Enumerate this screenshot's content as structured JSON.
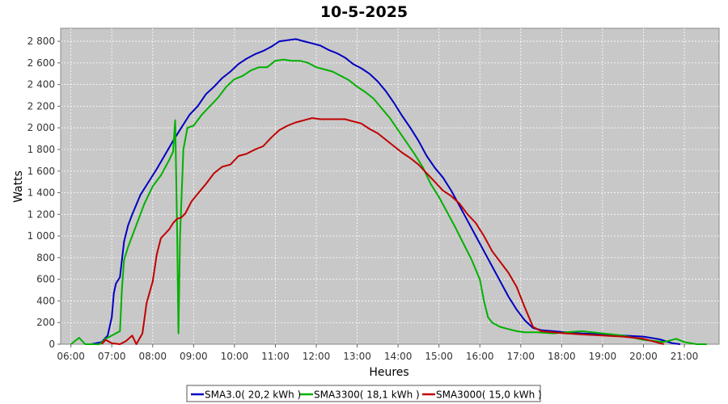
{
  "chart_data": {
    "type": "line",
    "title": "10-5-2025",
    "xlabel": "Heures",
    "ylabel": "Watts",
    "x_unit": "time of day (decimal hours)",
    "xlim": [
      5.75,
      21.85
    ],
    "ylim": [
      0,
      2920
    ],
    "x_ticks": [
      6,
      7,
      8,
      9,
      10,
      11,
      12,
      13,
      14,
      15,
      16,
      17,
      18,
      19,
      20,
      21
    ],
    "x_tick_labels": [
      "06:00",
      "07:00",
      "08:00",
      "09:00",
      "10:00",
      "11:00",
      "12:00",
      "13:00",
      "14:00",
      "15:00",
      "16:00",
      "17:00",
      "18:00",
      "19:00",
      "20:00",
      "21:00"
    ],
    "y_ticks": [
      0,
      200,
      400,
      600,
      800,
      1000,
      1200,
      1400,
      1600,
      1800,
      2000,
      2200,
      2400,
      2600,
      2800
    ],
    "y_tick_labels": [
      "0",
      "200",
      "400",
      "600",
      "800",
      "1 000",
      "1 200",
      "1 400",
      "1 600",
      "1 800",
      "2 000",
      "2 200",
      "2 400",
      "2 600",
      "2 800"
    ],
    "grid": true,
    "legend_position": "bottom",
    "background_color": "#c8c8c8",
    "series": [
      {
        "name": "SMA3.0( 20,2 kWh )",
        "color": "#0000c0",
        "points": [
          [
            6.5,
            0
          ],
          [
            6.75,
            20
          ],
          [
            6.9,
            80
          ],
          [
            7.0,
            250
          ],
          [
            7.05,
            470
          ],
          [
            7.1,
            560
          ],
          [
            7.2,
            620
          ],
          [
            7.3,
            950
          ],
          [
            7.4,
            1100
          ],
          [
            7.5,
            1200
          ],
          [
            7.7,
            1380
          ],
          [
            7.9,
            1500
          ],
          [
            8.1,
            1620
          ],
          [
            8.3,
            1750
          ],
          [
            8.5,
            1880
          ],
          [
            8.7,
            2000
          ],
          [
            8.9,
            2120
          ],
          [
            9.1,
            2200
          ],
          [
            9.3,
            2310
          ],
          [
            9.5,
            2380
          ],
          [
            9.7,
            2460
          ],
          [
            9.9,
            2520
          ],
          [
            10.1,
            2590
          ],
          [
            10.3,
            2640
          ],
          [
            10.5,
            2680
          ],
          [
            10.7,
            2710
          ],
          [
            10.9,
            2750
          ],
          [
            11.1,
            2800
          ],
          [
            11.3,
            2810
          ],
          [
            11.5,
            2820
          ],
          [
            11.7,
            2800
          ],
          [
            11.9,
            2780
          ],
          [
            12.1,
            2760
          ],
          [
            12.3,
            2720
          ],
          [
            12.5,
            2690
          ],
          [
            12.7,
            2650
          ],
          [
            12.9,
            2590
          ],
          [
            13.1,
            2550
          ],
          [
            13.3,
            2500
          ],
          [
            13.5,
            2430
          ],
          [
            13.7,
            2340
          ],
          [
            13.9,
            2230
          ],
          [
            14.1,
            2110
          ],
          [
            14.3,
            2000
          ],
          [
            14.5,
            1880
          ],
          [
            14.7,
            1740
          ],
          [
            14.9,
            1630
          ],
          [
            15.1,
            1540
          ],
          [
            15.3,
            1420
          ],
          [
            15.5,
            1280
          ],
          [
            15.7,
            1140
          ],
          [
            15.9,
            1000
          ],
          [
            16.1,
            860
          ],
          [
            16.3,
            720
          ],
          [
            16.5,
            580
          ],
          [
            16.7,
            440
          ],
          [
            16.9,
            320
          ],
          [
            17.1,
            220
          ],
          [
            17.3,
            150
          ],
          [
            17.5,
            130
          ],
          [
            17.8,
            120
          ],
          [
            18.1,
            110
          ],
          [
            18.5,
            100
          ],
          [
            19.0,
            90
          ],
          [
            19.5,
            80
          ],
          [
            20.0,
            70
          ],
          [
            20.4,
            45
          ],
          [
            20.7,
            10
          ],
          [
            20.9,
            0
          ]
        ]
      },
      {
        "name": "SMA3300( 18,1 kWh )",
        "color": "#00b000",
        "points": [
          [
            6.0,
            0
          ],
          [
            6.2,
            60
          ],
          [
            6.35,
            0
          ],
          [
            6.7,
            0
          ],
          [
            6.85,
            50
          ],
          [
            7.0,
            80
          ],
          [
            7.2,
            120
          ],
          [
            7.25,
            520
          ],
          [
            7.3,
            780
          ],
          [
            7.4,
            900
          ],
          [
            7.6,
            1100
          ],
          [
            7.8,
            1300
          ],
          [
            8.0,
            1460
          ],
          [
            8.2,
            1560
          ],
          [
            8.4,
            1700
          ],
          [
            8.5,
            1780
          ],
          [
            8.55,
            2070
          ],
          [
            8.6,
            1000
          ],
          [
            8.63,
            100
          ],
          [
            8.67,
            1000
          ],
          [
            8.75,
            1800
          ],
          [
            8.85,
            2000
          ],
          [
            9.0,
            2020
          ],
          [
            9.2,
            2120
          ],
          [
            9.4,
            2200
          ],
          [
            9.6,
            2280
          ],
          [
            9.8,
            2380
          ],
          [
            10.0,
            2450
          ],
          [
            10.2,
            2480
          ],
          [
            10.4,
            2530
          ],
          [
            10.6,
            2560
          ],
          [
            10.8,
            2560
          ],
          [
            11.0,
            2620
          ],
          [
            11.2,
            2630
          ],
          [
            11.4,
            2620
          ],
          [
            11.6,
            2620
          ],
          [
            11.8,
            2600
          ],
          [
            12.0,
            2560
          ],
          [
            12.2,
            2540
          ],
          [
            12.4,
            2520
          ],
          [
            12.6,
            2480
          ],
          [
            12.8,
            2440
          ],
          [
            13.0,
            2380
          ],
          [
            13.2,
            2330
          ],
          [
            13.4,
            2270
          ],
          [
            13.6,
            2180
          ],
          [
            13.8,
            2090
          ],
          [
            14.0,
            1980
          ],
          [
            14.2,
            1870
          ],
          [
            14.4,
            1760
          ],
          [
            14.6,
            1640
          ],
          [
            14.8,
            1480
          ],
          [
            15.0,
            1360
          ],
          [
            15.2,
            1220
          ],
          [
            15.4,
            1080
          ],
          [
            15.6,
            930
          ],
          [
            15.8,
            780
          ],
          [
            16.0,
            600
          ],
          [
            16.1,
            400
          ],
          [
            16.2,
            250
          ],
          [
            16.3,
            200
          ],
          [
            16.5,
            160
          ],
          [
            16.7,
            140
          ],
          [
            16.9,
            120
          ],
          [
            17.1,
            110
          ],
          [
            17.4,
            110
          ],
          [
            17.8,
            100
          ],
          [
            18.1,
            110
          ],
          [
            18.5,
            120
          ],
          [
            19.0,
            100
          ],
          [
            19.5,
            80
          ],
          [
            20.0,
            40
          ],
          [
            20.5,
            20
          ],
          [
            20.8,
            50
          ],
          [
            21.0,
            20
          ],
          [
            21.3,
            0
          ],
          [
            21.55,
            0
          ]
        ]
      },
      {
        "name": "SMA3000( 15,0 kWh )",
        "color": "#c00000",
        "points": [
          [
            6.75,
            0
          ],
          [
            6.85,
            40
          ],
          [
            7.0,
            10
          ],
          [
            7.2,
            0
          ],
          [
            7.35,
            30
          ],
          [
            7.5,
            80
          ],
          [
            7.6,
            0
          ],
          [
            7.75,
            100
          ],
          [
            7.85,
            380
          ],
          [
            8.0,
            580
          ],
          [
            8.1,
            830
          ],
          [
            8.2,
            980
          ],
          [
            8.4,
            1060
          ],
          [
            8.5,
            1120
          ],
          [
            8.6,
            1160
          ],
          [
            8.7,
            1170
          ],
          [
            8.8,
            1210
          ],
          [
            8.95,
            1320
          ],
          [
            9.1,
            1390
          ],
          [
            9.3,
            1480
          ],
          [
            9.5,
            1580
          ],
          [
            9.7,
            1640
          ],
          [
            9.9,
            1660
          ],
          [
            10.1,
            1740
          ],
          [
            10.3,
            1760
          ],
          [
            10.5,
            1800
          ],
          [
            10.7,
            1830
          ],
          [
            10.9,
            1910
          ],
          [
            11.1,
            1980
          ],
          [
            11.3,
            2020
          ],
          [
            11.5,
            2050
          ],
          [
            11.7,
            2070
          ],
          [
            11.9,
            2090
          ],
          [
            12.1,
            2080
          ],
          [
            12.3,
            2080
          ],
          [
            12.5,
            2080
          ],
          [
            12.7,
            2080
          ],
          [
            12.9,
            2060
          ],
          [
            13.1,
            2040
          ],
          [
            13.3,
            1990
          ],
          [
            13.5,
            1950
          ],
          [
            13.7,
            1890
          ],
          [
            13.9,
            1830
          ],
          [
            14.1,
            1770
          ],
          [
            14.3,
            1720
          ],
          [
            14.5,
            1660
          ],
          [
            14.7,
            1580
          ],
          [
            14.9,
            1500
          ],
          [
            15.1,
            1420
          ],
          [
            15.3,
            1370
          ],
          [
            15.5,
            1300
          ],
          [
            15.7,
            1200
          ],
          [
            15.9,
            1120
          ],
          [
            16.1,
            1000
          ],
          [
            16.3,
            860
          ],
          [
            16.5,
            760
          ],
          [
            16.7,
            660
          ],
          [
            16.9,
            530
          ],
          [
            17.1,
            340
          ],
          [
            17.3,
            160
          ],
          [
            17.5,
            120
          ],
          [
            17.8,
            110
          ],
          [
            18.1,
            100
          ],
          [
            18.5,
            90
          ],
          [
            19.0,
            80
          ],
          [
            19.5,
            70
          ],
          [
            20.0,
            50
          ],
          [
            20.3,
            20
          ],
          [
            20.5,
            0
          ]
        ]
      }
    ]
  }
}
